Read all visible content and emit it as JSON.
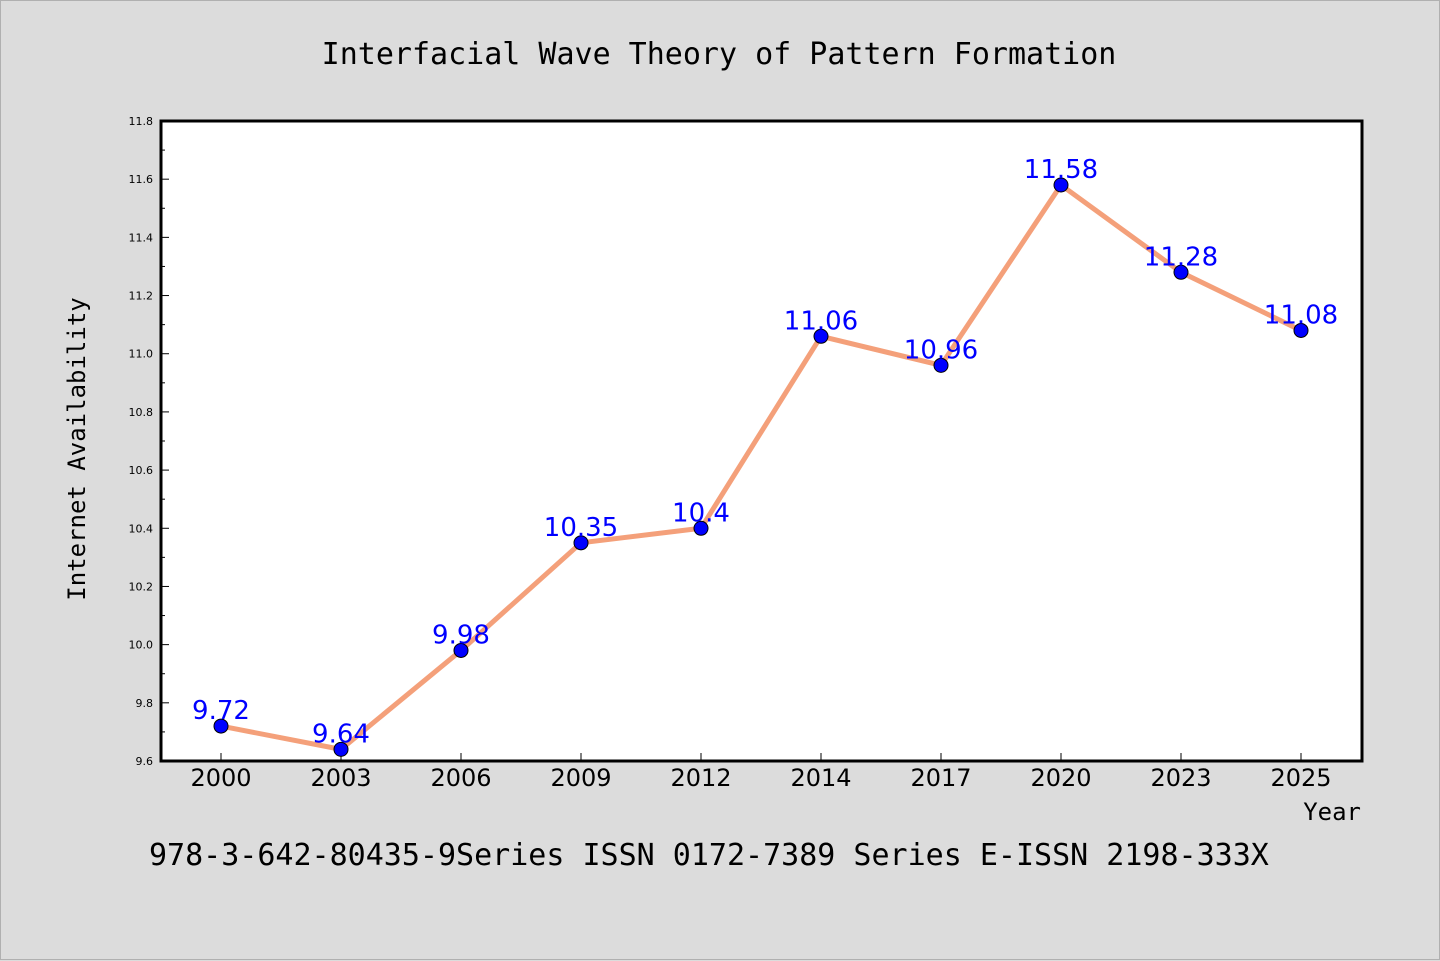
{
  "chart_data": {
    "type": "line",
    "title": "Interfacial Wave Theory of Pattern Formation",
    "xlabel": "Year",
    "ylabel": "Internet Availability",
    "categories": [
      "2000",
      "2003",
      "2006",
      "2009",
      "2012",
      "2014",
      "2017",
      "2020",
      "2023",
      "2025"
    ],
    "series": [
      {
        "values": [
          9.72,
          9.64,
          9.98,
          10.35,
          10.4,
          11.06,
          10.96,
          11.58,
          11.28,
          11.08
        ],
        "labels": [
          "9.72",
          "9.64",
          "9.98",
          "10.35",
          "10.4",
          "11.06",
          "10.96",
          "11.58",
          "11.28",
          "11.08"
        ]
      }
    ],
    "ylim": [
      9.6,
      11.8
    ],
    "yticks": [
      "9.6",
      "9.8",
      "10.0",
      "10.2",
      "10.4",
      "10.6",
      "10.8",
      "11.0",
      "11.2",
      "11.4",
      "11.6",
      "11.8"
    ],
    "grid": false,
    "legend": "none"
  },
  "footer": "978-3-642-80435-9Series ISSN 0172-7389 Series E-ISSN 2198-333X",
  "colors": {
    "background": "#dcdcdc",
    "plot_background": "#ffffff",
    "line": "#f4a07a",
    "marker": "#0000ff",
    "data_label": "#0000ff"
  }
}
